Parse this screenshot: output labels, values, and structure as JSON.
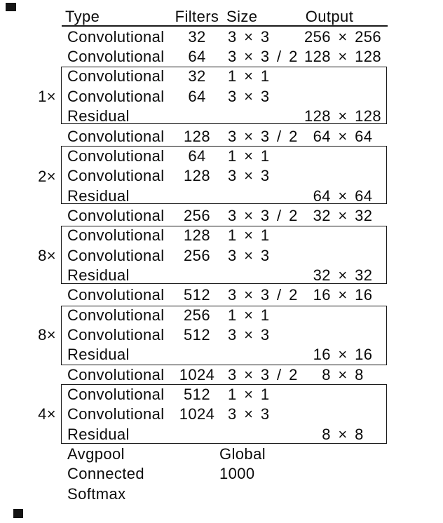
{
  "meta": {
    "background_color": "#ffffff",
    "text_color": "#0b0b0b",
    "line_color": "#1a1a1a"
  },
  "table": {
    "headers": {
      "type": "Type",
      "filters": "Filters",
      "size": "Size",
      "output": "Output"
    },
    "rows": [
      {
        "type": "Convolutional",
        "filters": "32",
        "size": "3 × 3",
        "output": "256 × 256"
      },
      {
        "type": "Convolutional",
        "filters": "64",
        "size": "3 × 3 / 2",
        "output": "128 × 128"
      },
      {
        "type": "Convolutional",
        "filters": "32",
        "size": "1 × 1",
        "output": ""
      },
      {
        "type": "Convolutional",
        "filters": "64",
        "size": "3 × 3",
        "output": ""
      },
      {
        "type": "Residual",
        "filters": "",
        "size": "",
        "output": "128 × 128"
      },
      {
        "type": "Convolutional",
        "filters": "128",
        "size": "3 × 3 / 2",
        "output": "64 × 64"
      },
      {
        "type": "Convolutional",
        "filters": "64",
        "size": "1 × 1",
        "output": ""
      },
      {
        "type": "Convolutional",
        "filters": "128",
        "size": "3 × 3",
        "output": ""
      },
      {
        "type": "Residual",
        "filters": "",
        "size": "",
        "output": "64 × 64"
      },
      {
        "type": "Convolutional",
        "filters": "256",
        "size": "3 × 3 / 2",
        "output": "32 × 32"
      },
      {
        "type": "Convolutional",
        "filters": "128",
        "size": "1 × 1",
        "output": ""
      },
      {
        "type": "Convolutional",
        "filters": "256",
        "size": "3 × 3",
        "output": ""
      },
      {
        "type": "Residual",
        "filters": "",
        "size": "",
        "output": "32 × 32"
      },
      {
        "type": "Convolutional",
        "filters": "512",
        "size": "3 × 3 / 2",
        "output": "16 × 16"
      },
      {
        "type": "Convolutional",
        "filters": "256",
        "size": "1 × 1",
        "output": ""
      },
      {
        "type": "Convolutional",
        "filters": "512",
        "size": "3 × 3",
        "output": ""
      },
      {
        "type": "Residual",
        "filters": "",
        "size": "",
        "output": "16 × 16"
      },
      {
        "type": "Convolutional",
        "filters": "1024",
        "size": "3 × 3 / 2",
        "output": "8 × 8"
      },
      {
        "type": "Convolutional",
        "filters": "512",
        "size": "1 × 1",
        "output": ""
      },
      {
        "type": "Convolutional",
        "filters": "1024",
        "size": "3 × 3",
        "output": ""
      },
      {
        "type": "Residual",
        "filters": "",
        "size": "",
        "output": "8 × 8"
      }
    ],
    "blocks": [
      {
        "multiplier": "1×"
      },
      {
        "multiplier": "2×"
      },
      {
        "multiplier": "8×"
      },
      {
        "multiplier": "8×"
      },
      {
        "multiplier": "4×"
      }
    ],
    "tail_rows": [
      {
        "type": "Avgpool",
        "size": "Global"
      },
      {
        "type": "Connected",
        "size": "1000"
      },
      {
        "type": "Softmax",
        "size": ""
      }
    ]
  }
}
